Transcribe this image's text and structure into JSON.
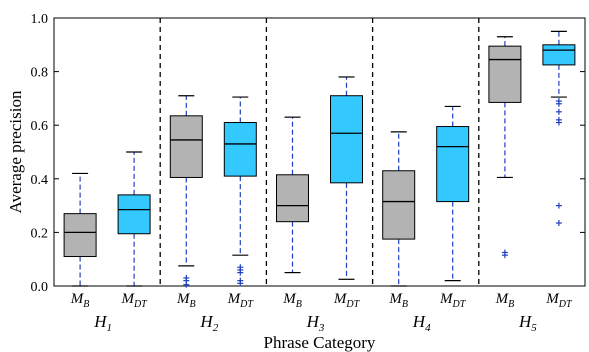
{
  "chart_data": {
    "type": "box",
    "xlabel": "Phrase Category",
    "ylabel": "Average precision",
    "ylim": [
      0,
      1.0
    ],
    "y_ticks": [
      "0.0",
      "0.2",
      "0.4",
      "0.6",
      "0.8",
      "1.0"
    ],
    "y_tick_values": [
      0.0,
      0.2,
      0.4,
      0.6,
      0.8,
      1.0
    ],
    "box_labels": [
      {
        "base": "M",
        "sub": "B"
      },
      {
        "base": "M",
        "sub": "DT"
      }
    ],
    "groups": [
      {
        "label": {
          "base": "H",
          "sub": "1"
        },
        "boxes": [
          {
            "q1": 0.11,
            "median": 0.2,
            "q3": 0.27,
            "whisker_low": 0.0,
            "whisker_high": 0.42,
            "outliers": []
          },
          {
            "q1": 0.195,
            "median": 0.285,
            "q3": 0.34,
            "whisker_low": 0.0,
            "whisker_high": 0.5,
            "outliers": []
          }
        ]
      },
      {
        "label": {
          "base": "H",
          "sub": "2"
        },
        "boxes": [
          {
            "q1": 0.405,
            "median": 0.545,
            "q3": 0.635,
            "whisker_low": 0.075,
            "whisker_high": 0.71,
            "outliers": [
              0.03,
              0.02,
              0.005
            ]
          },
          {
            "q1": 0.41,
            "median": 0.53,
            "q3": 0.61,
            "whisker_low": 0.115,
            "whisker_high": 0.705,
            "outliers": [
              0.07,
              0.06,
              0.05,
              0.02,
              0.01
            ]
          }
        ]
      },
      {
        "label": {
          "base": "H",
          "sub": "3"
        },
        "boxes": [
          {
            "q1": 0.24,
            "median": 0.3,
            "q3": 0.415,
            "whisker_low": 0.05,
            "whisker_high": 0.63,
            "outliers": []
          },
          {
            "q1": 0.385,
            "median": 0.57,
            "q3": 0.71,
            "whisker_low": 0.025,
            "whisker_high": 0.78,
            "outliers": []
          }
        ]
      },
      {
        "label": {
          "base": "H",
          "sub": "4"
        },
        "boxes": [
          {
            "q1": 0.175,
            "median": 0.315,
            "q3": 0.43,
            "whisker_low": 0.0,
            "whisker_high": 0.575,
            "outliers": []
          },
          {
            "q1": 0.315,
            "median": 0.52,
            "q3": 0.595,
            "whisker_low": 0.02,
            "whisker_high": 0.67,
            "outliers": []
          }
        ]
      },
      {
        "label": {
          "base": "H",
          "sub": "5"
        },
        "boxes": [
          {
            "q1": 0.685,
            "median": 0.845,
            "q3": 0.895,
            "whisker_low": 0.405,
            "whisker_high": 0.93,
            "outliers": [
              0.125,
              0.115
            ]
          },
          {
            "q1": 0.825,
            "median": 0.88,
            "q3": 0.9,
            "whisker_low": 0.705,
            "whisker_high": 0.95,
            "outliers": [
              0.69,
              0.68,
              0.65,
              0.62,
              0.61,
              0.3,
              0.235
            ]
          }
        ]
      }
    ],
    "colors": {
      "box_baseline": "#b3b3b3",
      "box_dt": "#33c9ff",
      "whisker": "#1f3fbf",
      "outlier": "#1f3fbf",
      "divider": "#000000"
    }
  }
}
